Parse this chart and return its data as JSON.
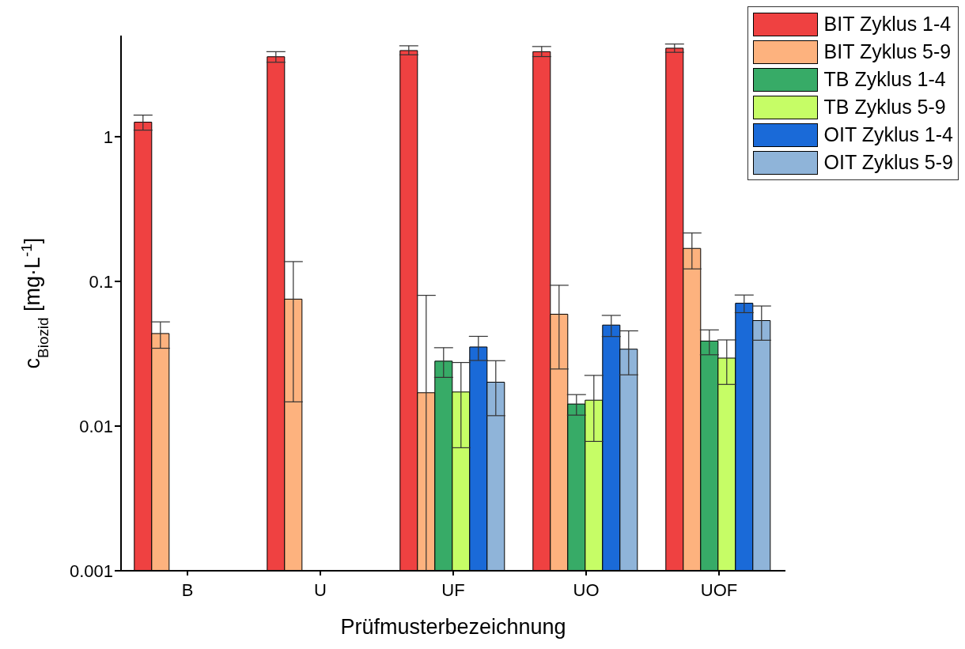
{
  "chart_data": {
    "type": "bar",
    "xlabel": "Prüfmusterbezeichnung",
    "ylabel": "c$_{Biozid}$ [mg·L$^{-1}$]",
    "categories": [
      "B",
      "U",
      "UF",
      "UO",
      "UOF"
    ],
    "log": true,
    "ylim": [
      0.001,
      5
    ],
    "yticks": [
      0.001,
      0.01,
      0.1,
      1
    ],
    "legend": "top right",
    "series": [
      {
        "name": "BIT Zyklus 1-4",
        "color": "#ef4141",
        "values": [
          1.26,
          3.57,
          3.94,
          3.87,
          4.09
        ],
        "errors": [
          [
            1.11,
            1.41
          ],
          [
            3.27,
            3.87
          ],
          [
            3.68,
            4.25
          ],
          [
            3.58,
            4.2
          ],
          [
            3.83,
            4.37
          ]
        ]
      },
      {
        "name": "BIT Zyklus 5-9",
        "color": "#fdb27e",
        "values": [
          0.0436,
          0.0754,
          0.017,
          0.0593,
          0.169
        ],
        "errors": [
          [
            0.0345,
            0.0525
          ],
          [
            0.0147,
            0.137
          ],
          [
            0.001,
            0.0801
          ],
          [
            0.0248,
            0.094
          ],
          [
            0.122,
            0.216
          ]
        ]
      },
      {
        "name": "TB Zyklus 1-4",
        "color": "#37ab67",
        "values": [
          null,
          null,
          0.0281,
          0.0142,
          0.0387
        ],
        "errors": [
          null,
          null,
          [
            0.0217,
            0.0348
          ],
          [
            0.0119,
            0.0165
          ],
          [
            0.0311,
            0.0462
          ]
        ]
      },
      {
        "name": "TB Zyklus 5-9",
        "color": "#c6fd66",
        "values": [
          null,
          null,
          0.0172,
          0.0151,
          0.0295
        ],
        "errors": [
          null,
          null,
          [
            0.00708,
            0.0275
          ],
          [
            0.00783,
            0.0224
          ],
          [
            0.0194,
            0.0394
          ]
        ]
      },
      {
        "name": "OIT Zyklus 1-4",
        "color": "#1a6ad8",
        "values": [
          null,
          null,
          0.0352,
          0.0499,
          0.0706
        ],
        "errors": [
          null,
          null,
          [
            0.0284,
            0.0417
          ],
          [
            0.0416,
            0.0582
          ],
          [
            0.0608,
            0.0805
          ]
        ]
      },
      {
        "name": "OIT Zyklus 5-9",
        "color": "#8fb4d9",
        "values": [
          null,
          null,
          0.0201,
          0.034,
          0.0536
        ],
        "errors": [
          null,
          null,
          [
            0.0118,
            0.0283
          ],
          [
            0.0226,
            0.0455
          ],
          [
            0.0392,
            0.0676
          ]
        ]
      }
    ]
  }
}
